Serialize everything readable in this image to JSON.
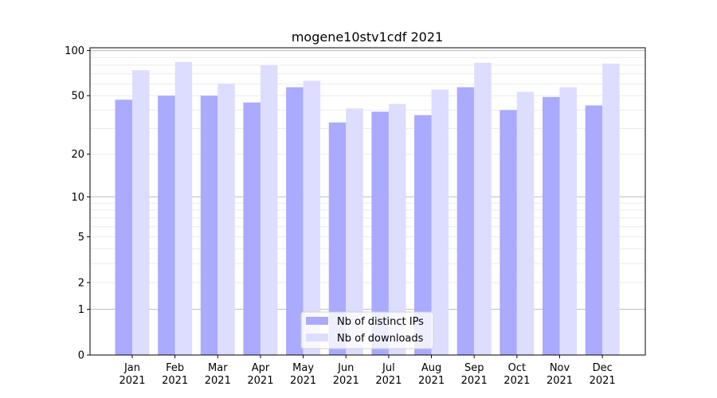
{
  "chart_data": {
    "type": "bar",
    "title": "mogene10stv1cdf 2021",
    "xlabel": "",
    "ylabel": "",
    "yscale": "log10(y+1)",
    "ylim": [
      0,
      100
    ],
    "yticks": [
      0,
      1,
      2,
      5,
      10,
      20,
      50,
      100
    ],
    "grid": true,
    "legend_position": "bottom-center",
    "categories": [
      "Jan\n2021",
      "Feb\n2021",
      "Mar\n2021",
      "Apr\n2021",
      "May\n2021",
      "Jun\n2021",
      "Jul\n2021",
      "Aug\n2021",
      "Sep\n2021",
      "Oct\n2021",
      "Nov\n2021",
      "Dec\n2021"
    ],
    "series": [
      {
        "name": "Nb of distinct IPs",
        "color": "#aaaaff",
        "values": [
          47,
          50,
          50,
          45,
          57,
          33,
          39,
          37,
          57,
          40,
          49,
          43
        ]
      },
      {
        "name": "Nb of downloads",
        "color": "#ddddff",
        "values": [
          74,
          84,
          60,
          80,
          63,
          41,
          44,
          55,
          83,
          53,
          57,
          82
        ]
      }
    ]
  }
}
